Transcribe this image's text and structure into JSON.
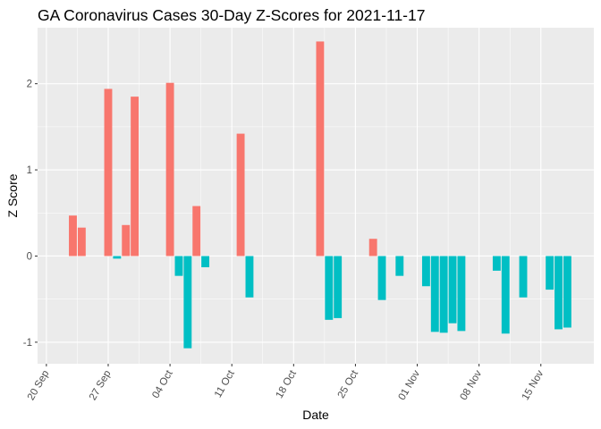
{
  "chart_data": {
    "type": "bar",
    "title": "GA Coronavirus Cases 30-Day Z-Scores for 2021-11-17",
    "xlabel": "Date",
    "ylabel": "Z Score",
    "x_range": [
      "2021-09-19",
      "2021-11-21"
    ],
    "ylim": [
      -1.25,
      2.65
    ],
    "y_ticks": [
      -1,
      0,
      1,
      2
    ],
    "x_ticks": [
      {
        "date": "2021-09-20",
        "label": "20 Sep"
      },
      {
        "date": "2021-09-27",
        "label": "27 Sep"
      },
      {
        "date": "2021-10-04",
        "label": "04 Oct"
      },
      {
        "date": "2021-10-11",
        "label": "11 Oct"
      },
      {
        "date": "2021-10-18",
        "label": "18 Oct"
      },
      {
        "date": "2021-10-25",
        "label": "25 Oct"
      },
      {
        "date": "2021-11-01",
        "label": "01 Nov"
      },
      {
        "date": "2021-11-08",
        "label": "08 Nov"
      },
      {
        "date": "2021-11-15",
        "label": "15 Nov"
      }
    ],
    "positive_color": "#F8766D",
    "negative_color": "#00BFC4",
    "grid": true,
    "panel_background": "#EBEBEB",
    "legend": "none",
    "dates": [
      "2021-09-23",
      "2021-09-24",
      "2021-09-27",
      "2021-09-28",
      "2021-09-29",
      "2021-09-30",
      "2021-10-01",
      "2021-10-04",
      "2021-10-05",
      "2021-10-06",
      "2021-10-07",
      "2021-10-08",
      "2021-10-12",
      "2021-10-13",
      "2021-10-21",
      "2021-10-22",
      "2021-10-23",
      "2021-10-27",
      "2021-10-28",
      "2021-10-30",
      "2021-11-02",
      "2021-11-03",
      "2021-11-04",
      "2021-11-05",
      "2021-11-06",
      "2021-11-10",
      "2021-11-11",
      "2021-11-13",
      "2021-11-16",
      "2021-11-17",
      "2021-11-18"
    ],
    "values": [
      0.47,
      0.33,
      1.94,
      -0.03,
      0.36,
      1.85,
      0.0,
      2.01,
      -0.23,
      -1.07,
      0.58,
      -0.13,
      1.42,
      -0.48,
      2.49,
      -0.74,
      -0.72,
      0.2,
      -0.51,
      -0.23,
      -0.35,
      -0.88,
      -0.89,
      -0.78,
      -0.87,
      -0.17,
      -0.9,
      -0.48,
      -0.39,
      -0.85,
      -0.83
    ]
  }
}
